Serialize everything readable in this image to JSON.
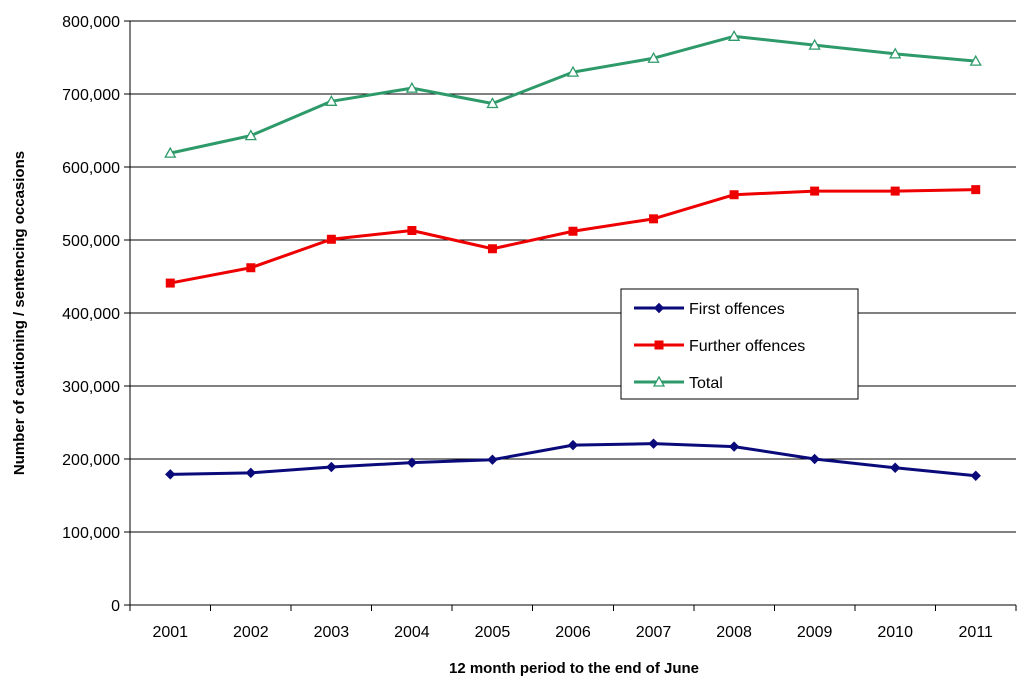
{
  "chart_data": {
    "type": "line",
    "xlabel": "12 month period to the end of June",
    "ylabel": "Number of cautioning / sentencing occasions",
    "categories": [
      "2001",
      "2002",
      "2003",
      "2004",
      "2005",
      "2006",
      "2007",
      "2008",
      "2009",
      "2010",
      "2011"
    ],
    "ylim": [
      0,
      800000
    ],
    "yticks": [
      0,
      100000,
      200000,
      300000,
      400000,
      500000,
      600000,
      700000,
      800000
    ],
    "ytick_labels": [
      "0",
      "100,000",
      "200,000",
      "300,000",
      "400,000",
      "500,000",
      "600,000",
      "700,000",
      "800,000"
    ],
    "grid": "horizontal",
    "legend_position": "center-right",
    "series": [
      {
        "name": "First offences",
        "color": "#0a0a7a",
        "marker": "diamond",
        "values": [
          179000,
          181000,
          189000,
          195000,
          199000,
          219000,
          221000,
          217000,
          200000,
          188000,
          177000
        ]
      },
      {
        "name": "Further offences",
        "color": "#ee0000",
        "marker": "square",
        "values": [
          441000,
          462000,
          501000,
          513000,
          488000,
          512000,
          529000,
          562000,
          567000,
          567000,
          569000
        ]
      },
      {
        "name": "Total",
        "color": "#2e9a6a",
        "marker": "triangle",
        "values": [
          619000,
          643000,
          690000,
          708000,
          687000,
          730000,
          749000,
          779000,
          767000,
          755000,
          745000
        ]
      }
    ]
  }
}
